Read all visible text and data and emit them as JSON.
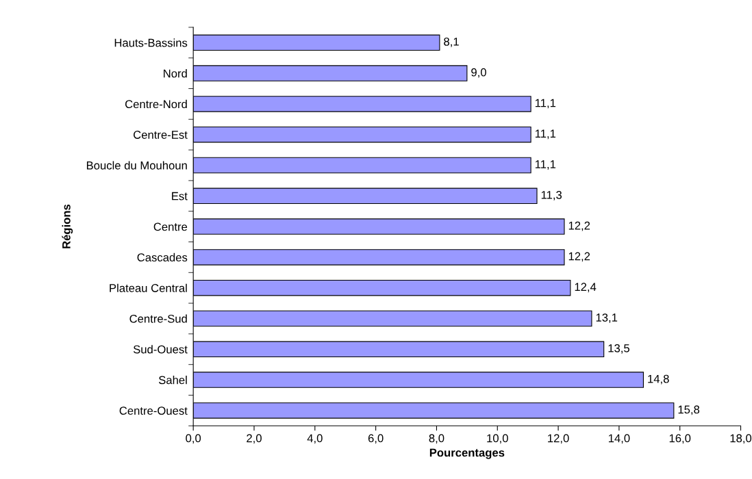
{
  "chart_data": {
    "type": "bar",
    "orientation": "horizontal",
    "xlabel": "Pourcentages",
    "ylabel": "Régions",
    "categories": [
      "Hauts-Bassins",
      "Nord",
      "Centre-Nord",
      "Centre-Est",
      "Boucle du Mouhoun",
      "Est",
      "Centre",
      "Cascades",
      "Plateau Central",
      "Centre-Sud",
      "Sud-Ouest",
      "Sahel",
      "Centre-Ouest"
    ],
    "values": [
      8.1,
      9.0,
      11.1,
      11.1,
      11.1,
      11.3,
      12.2,
      12.2,
      12.4,
      13.1,
      13.5,
      14.8,
      15.8
    ],
    "value_labels": [
      "8,1",
      "9,0",
      "11,1",
      "11,1",
      "11,1",
      "11,3",
      "12,2",
      "12,2",
      "12,4",
      "13,1",
      "13,5",
      "14,8",
      "15,8"
    ],
    "color": "#9999ff",
    "xlim": [
      0,
      18
    ],
    "xticks": [
      {
        "value": 0,
        "label": "0,0"
      },
      {
        "value": 2,
        "label": "2,0"
      },
      {
        "value": 4,
        "label": "4,0"
      },
      {
        "value": 6,
        "label": "6,0"
      },
      {
        "value": 8,
        "label": "8,0"
      },
      {
        "value": 10,
        "label": "10,0"
      },
      {
        "value": 12,
        "label": "12,0"
      },
      {
        "value": 14,
        "label": "14,0"
      },
      {
        "value": 16,
        "label": "16,0"
      },
      {
        "value": 18,
        "label": "18,0"
      }
    ],
    "grid": false,
    "legend": false
  }
}
